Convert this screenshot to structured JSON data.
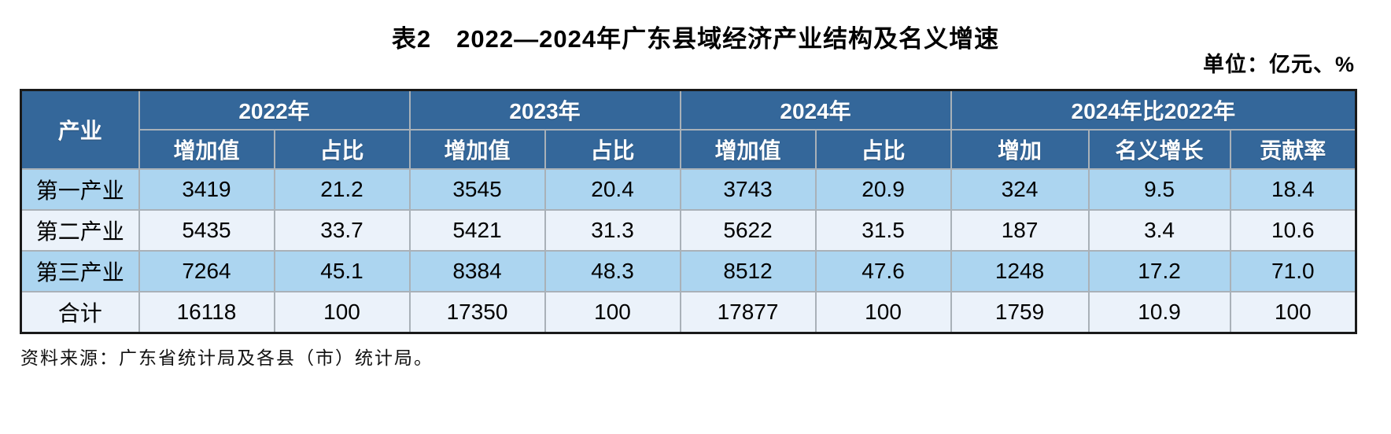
{
  "title": "表2　2022—2024年广东县域经济产业结构及名义增速",
  "unit": "单位：亿元、%",
  "source": "资料来源：广东省统计局及各县（市）统计局。",
  "colors": {
    "header_bg": "#34679a",
    "header_text": "#ffffff",
    "row_light_blue": "#acd5f0",
    "row_pale_blue": "#ebf2fa",
    "grid_line": "#a9b1b8",
    "outer_border": "#1a1a1a"
  },
  "table": {
    "corner_header": "产业",
    "column_groups": [
      {
        "label": "2022年",
        "children": [
          "增加值",
          "占比"
        ]
      },
      {
        "label": "2023年",
        "children": [
          "增加值",
          "占比"
        ]
      },
      {
        "label": "2024年",
        "children": [
          "增加值",
          "占比"
        ]
      },
      {
        "label": "2024年比2022年",
        "children": [
          "增加",
          "名义增长",
          "贡献率"
        ]
      }
    ],
    "rows": [
      {
        "label": "第一产业",
        "values": [
          "3419",
          "21.2",
          "3545",
          "20.4",
          "3743",
          "20.9",
          "324",
          "9.5",
          "18.4"
        ]
      },
      {
        "label": "第二产业",
        "values": [
          "5435",
          "33.7",
          "5421",
          "31.3",
          "5622",
          "31.5",
          "187",
          "3.4",
          "10.6"
        ]
      },
      {
        "label": "第三产业",
        "values": [
          "7264",
          "45.1",
          "8384",
          "48.3",
          "8512",
          "47.6",
          "1248",
          "17.2",
          "71.0"
        ]
      },
      {
        "label": "合计",
        "values": [
          "16118",
          "100",
          "17350",
          "100",
          "17877",
          "100",
          "1759",
          "10.9",
          "100"
        ]
      }
    ]
  }
}
